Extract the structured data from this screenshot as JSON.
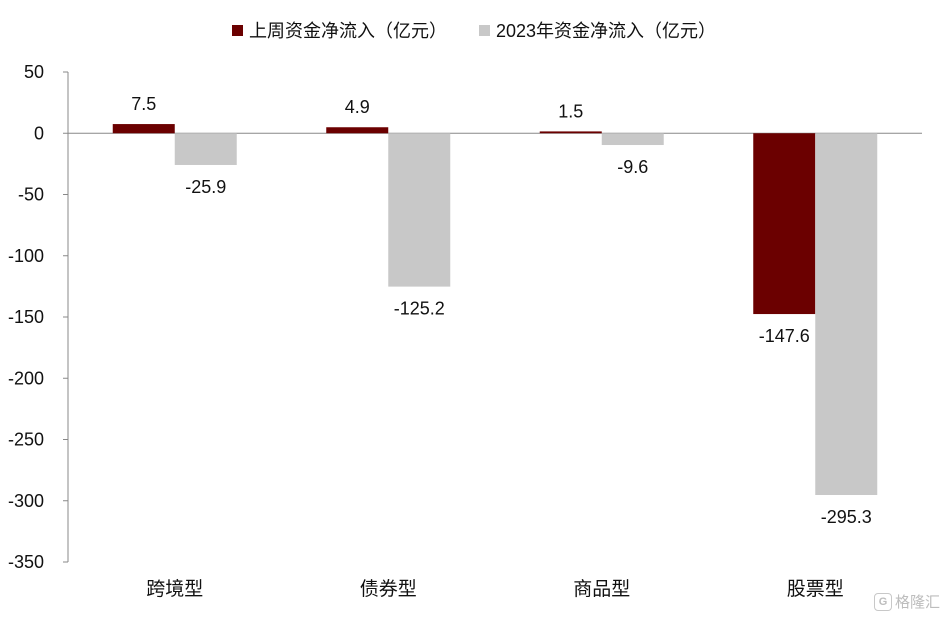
{
  "chart_data": {
    "type": "bar",
    "title": "",
    "xlabel": "",
    "ylabel": "",
    "categories": [
      "跨境型",
      "债券型",
      "商品型",
      "股票型"
    ],
    "series": [
      {
        "name": "上周资金净流入（亿元）",
        "values": [
          7.5,
          4.9,
          1.5,
          -147.6
        ],
        "labels": [
          "7.5",
          "4.9",
          "1.5",
          "-147.6"
        ],
        "color": "#6b0000"
      },
      {
        "name": "2023年资金净流入（亿元）",
        "values": [
          -25.9,
          -125.2,
          -9.6,
          -295.3
        ],
        "labels": [
          "-25.9",
          "-125.2",
          "-9.6",
          "-295.3"
        ],
        "color": "#c8c8c8"
      }
    ],
    "ylim": [
      -350,
      50
    ],
    "yticks": [
      50,
      0,
      -50,
      -100,
      -150,
      -200,
      -250,
      -300,
      -350
    ],
    "ytick_labels": [
      "50",
      "0",
      "-50",
      "-100",
      "-150",
      "-200",
      "-250",
      "-300",
      "-350"
    ],
    "grid": false,
    "legend_position": "top-center"
  },
  "watermark": {
    "icon": "G",
    "text": "格隆汇"
  }
}
